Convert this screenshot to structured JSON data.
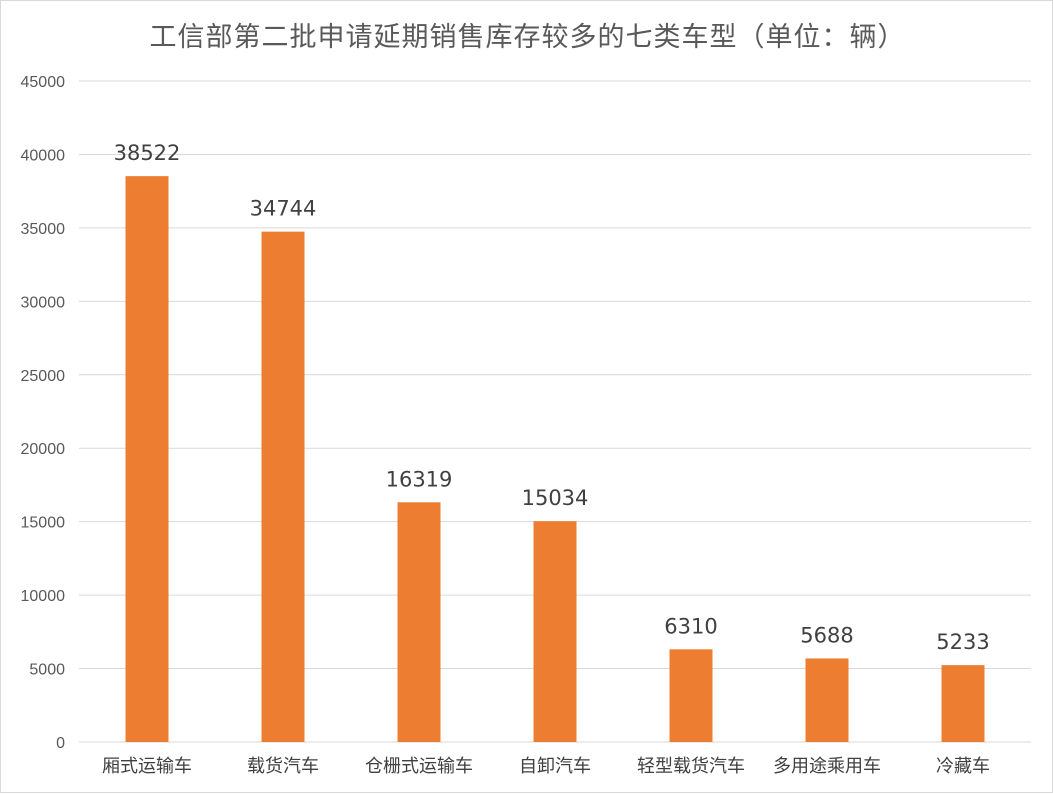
{
  "chart_data": {
    "type": "bar",
    "title": "工信部第二批申请延期销售库存较多的七类车型（单位：辆）",
    "categories": [
      "厢式运输车",
      "载货汽车",
      "仓栅式运输车",
      "自卸汽车",
      "轻型载货汽车",
      "多用途乘用车",
      "冷藏车"
    ],
    "values": [
      38522,
      34744,
      16319,
      15034,
      6310,
      5688,
      5233
    ],
    "data_labels": [
      "38522",
      "34744",
      "16319",
      "15034",
      "6310",
      "5688",
      "5233"
    ],
    "y_ticks": [
      "0",
      "5000",
      "10000",
      "15000",
      "20000",
      "25000",
      "30000",
      "35000",
      "40000",
      "45000"
    ],
    "ylim": [
      0,
      45000
    ],
    "xlabel": "",
    "ylabel": "",
    "grid": true,
    "legend": "none",
    "bar_color": "#ED7D31",
    "grid_color": "#d9d9d9"
  }
}
